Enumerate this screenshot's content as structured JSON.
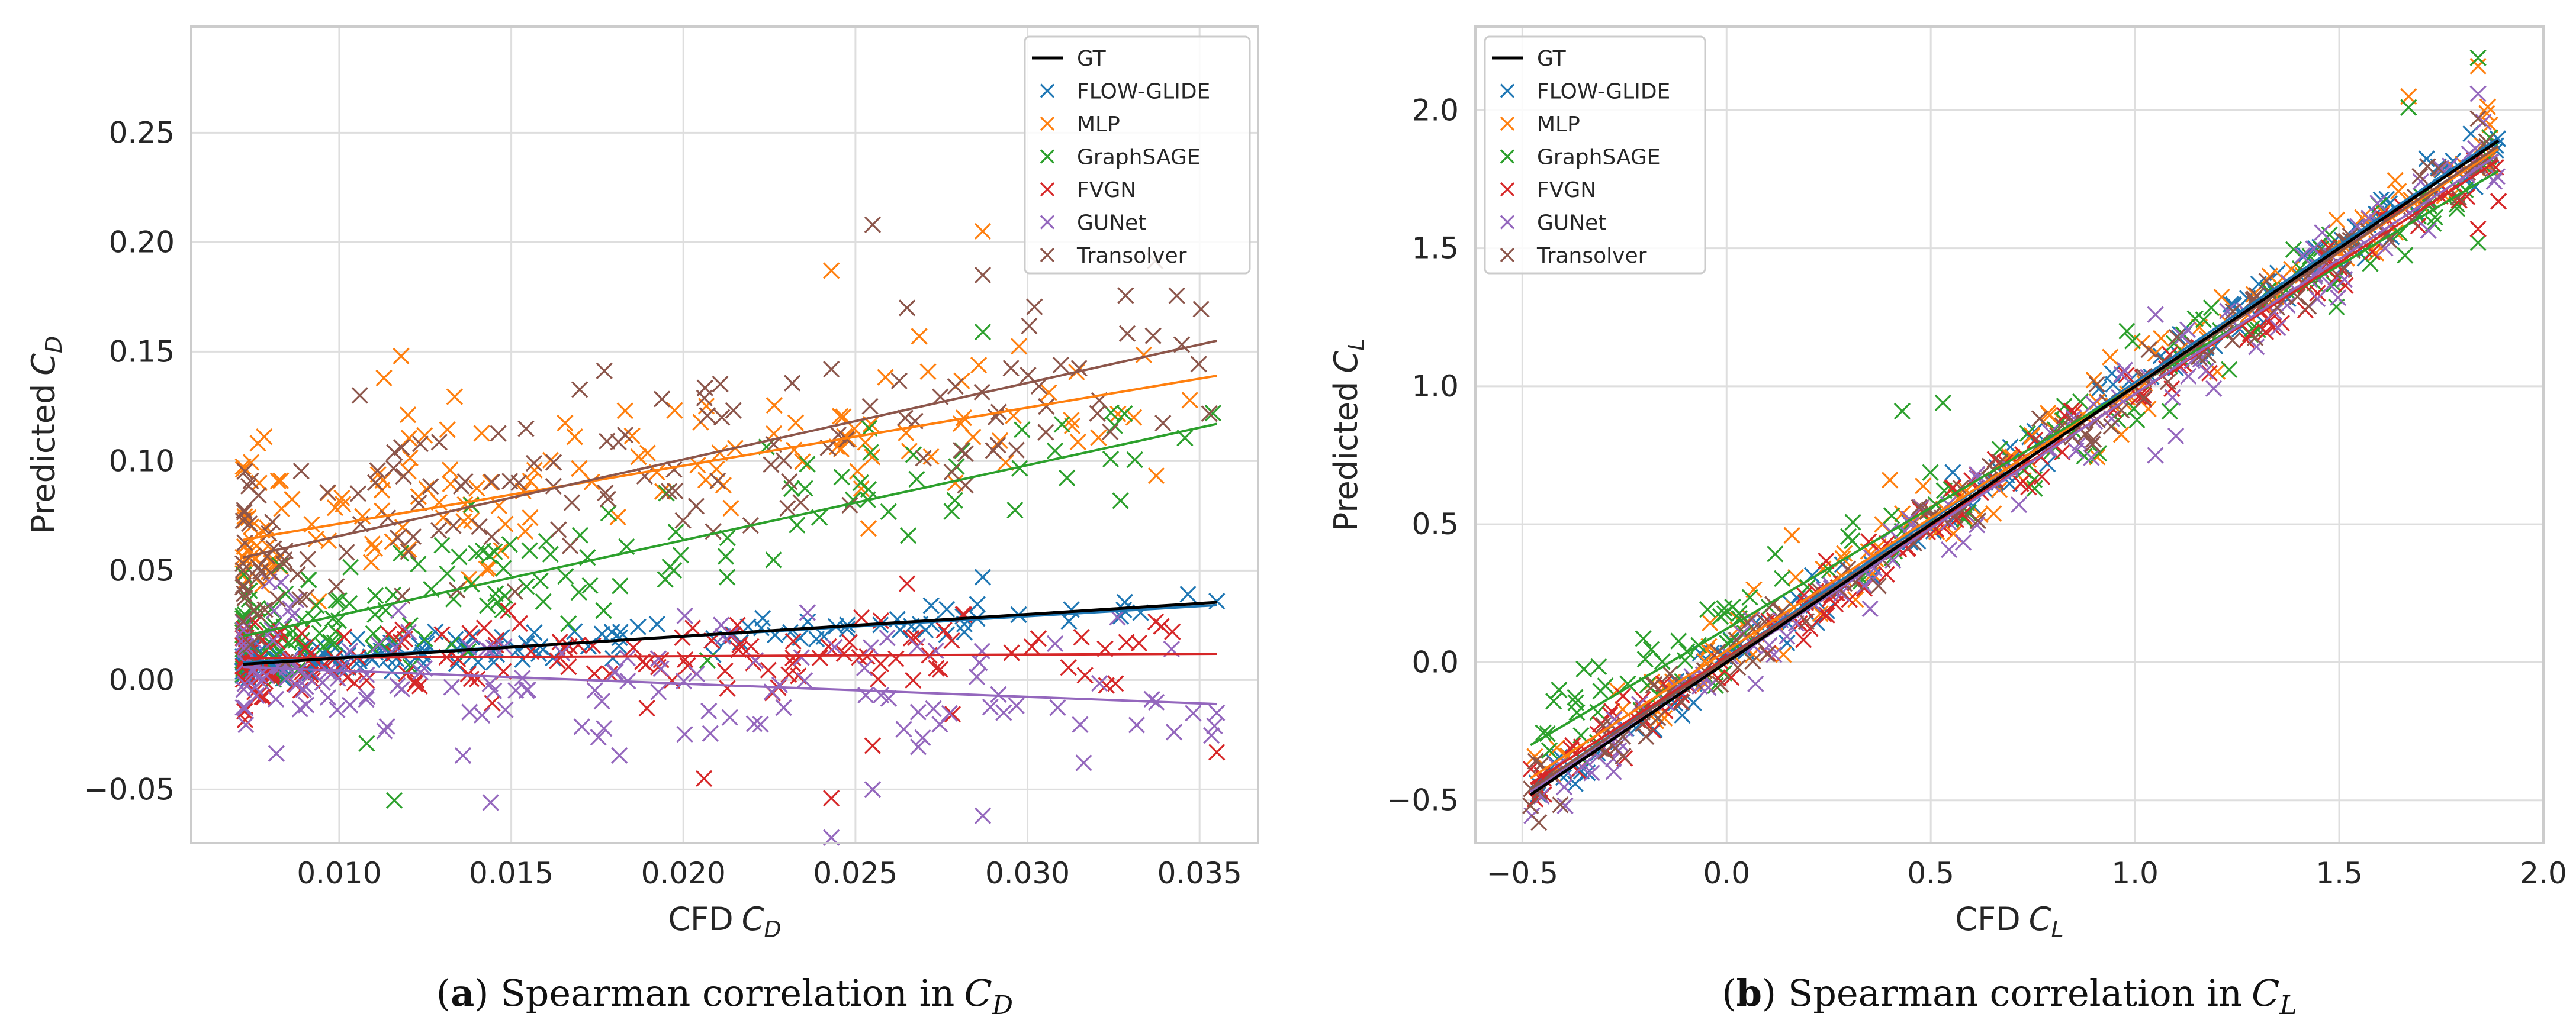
{
  "chart_data": [
    {
      "type": "scatter",
      "panel_label": "a",
      "caption": "Spearman correlation in",
      "caption_symbol": "C",
      "caption_sub": "D",
      "xlabel": "CFD",
      "xlabel_symbol": "C",
      "xlabel_sub": "D",
      "ylabel": "Predicted",
      "ylabel_symbol": "C",
      "ylabel_sub": "D",
      "xlim": [
        0.0057,
        0.0367
      ],
      "ylim": [
        -0.0745,
        0.2985
      ],
      "xticks": [
        0.01,
        0.015,
        0.02,
        0.025,
        0.03,
        0.035
      ],
      "xtick_labels": [
        "0.010",
        "0.015",
        "0.020",
        "0.025",
        "0.030",
        "0.035"
      ],
      "yticks": [
        -0.05,
        0.0,
        0.05,
        0.1,
        0.15,
        0.2,
        0.25
      ],
      "ytick_labels": [
        "−0.05",
        "0.00",
        "0.05",
        "0.10",
        "0.15",
        "0.20",
        "0.25"
      ],
      "grid": true,
      "legend_position": "top-right",
      "fit_x": [
        0.0072,
        0.0355
      ],
      "series": [
        {
          "name": "GT",
          "kind": "line",
          "color": "#000000",
          "fit": [
            0.0072,
            0.0355
          ]
        },
        {
          "name": "FLOW-GLIDE",
          "kind": "scatter",
          "color": "#1f77b4",
          "fit": [
            0.008,
            0.0342
          ],
          "noise": 0.004,
          "ext": [
            [
              0.0287,
              0.047
            ],
            [
              0.0355,
              0.036
            ],
            [
              0.0272,
              0.034
            ]
          ]
        },
        {
          "name": "MLP",
          "kind": "scatter",
          "color": "#ff7f0e",
          "fit": [
            0.064,
            0.139
          ],
          "noise": 0.018,
          "ext": [
            [
              0.0243,
              0.187
            ],
            [
              0.0287,
              0.205
            ],
            [
              0.0118,
              0.148
            ],
            [
              0.0113,
              0.138
            ],
            [
              0.0248,
              0.11
            ],
            [
              0.0279,
              0.09
            ]
          ]
        },
        {
          "name": "GraphSAGE",
          "kind": "scatter",
          "color": "#2ca02c",
          "fit": [
            0.02,
            0.117
          ],
          "noise": 0.014,
          "ext": [
            [
              0.0287,
              0.159
            ],
            [
              0.0254,
              0.115
            ],
            [
              0.0278,
              0.077
            ],
            [
              0.0116,
              -0.055
            ],
            [
              0.0108,
              -0.029
            ],
            [
              0.0207,
              0.009
            ]
          ]
        },
        {
          "name": "FVGN",
          "kind": "scatter",
          "color": "#d62728",
          "fit": [
            0.01,
            0.012
          ],
          "noise": 0.01,
          "ext": [
            [
              0.0355,
              -0.033
            ],
            [
              0.0243,
              -0.054
            ],
            [
              0.0206,
              -0.045
            ],
            [
              0.0255,
              -0.03
            ],
            [
              0.0278,
              0.018
            ],
            [
              0.0265,
              0.044
            ]
          ]
        },
        {
          "name": "GUNet",
          "kind": "scatter",
          "color": "#9467bd",
          "fit": [
            0.006,
            -0.011
          ],
          "noise": 0.016,
          "ext": [
            [
              0.0206,
              -0.075
            ],
            [
              0.0243,
              -0.072
            ],
            [
              0.0287,
              -0.062
            ],
            [
              0.0255,
              -0.05
            ],
            [
              0.0355,
              -0.015
            ],
            [
              0.0144,
              -0.056
            ]
          ]
        },
        {
          "name": "Transolver",
          "kind": "scatter",
          "color": "#8c564b",
          "fit": [
            0.056,
            0.155
          ],
          "noise": 0.02,
          "ext": [
            [
              0.0255,
              0.208
            ],
            [
              0.0287,
              0.185
            ],
            [
              0.0265,
              0.17
            ],
            [
              0.0243,
              0.142
            ],
            [
              0.0278,
              0.095
            ],
            [
              0.0106,
              0.13
            ]
          ]
        }
      ]
    },
    {
      "type": "scatter",
      "panel_label": "b",
      "caption": "Spearman correlation in",
      "caption_symbol": "C",
      "caption_sub": "L",
      "xlabel": "CFD",
      "xlabel_symbol": "C",
      "xlabel_sub": "L",
      "ylabel": "Predicted",
      "ylabel_symbol": "C",
      "ylabel_sub": "L",
      "xlim": [
        -0.615,
        2.0
      ],
      "ylim": [
        -0.655,
        2.303
      ],
      "xticks": [
        -0.5,
        0.0,
        0.5,
        1.0,
        1.5,
        2.0
      ],
      "xtick_labels": [
        "−0.5",
        "0.0",
        "0.5",
        "1.0",
        "1.5",
        "2.0"
      ],
      "yticks": [
        -0.5,
        0.0,
        0.5,
        1.0,
        1.5,
        2.0
      ],
      "ytick_labels": [
        "−0.5",
        "0.0",
        "0.5",
        "1.0",
        "1.5",
        "2.0"
      ],
      "grid": true,
      "legend_position": "top-left",
      "fit_x": [
        -0.48,
        1.89
      ],
      "series": [
        {
          "name": "GT",
          "kind": "line",
          "color": "#000000",
          "fit": [
            -0.48,
            1.89
          ]
        },
        {
          "name": "FLOW-GLIDE",
          "kind": "scatter",
          "color": "#1f77b4",
          "fit": [
            -0.46,
            1.9
          ],
          "noise": 0.05,
          "ext": []
        },
        {
          "name": "MLP",
          "kind": "scatter",
          "color": "#ff7f0e",
          "fit": [
            -0.42,
            1.86
          ],
          "noise": 0.07,
          "ext": [
            [
              1.67,
              2.05
            ],
            [
              1.84,
              2.16
            ],
            [
              0.16,
              0.46
            ],
            [
              0.4,
              0.66
            ]
          ]
        },
        {
          "name": "GraphSAGE",
          "kind": "scatter",
          "color": "#2ca02c",
          "fit": [
            -0.3,
            1.78
          ],
          "noise": 0.08,
          "ext": [
            [
              1.84,
              2.19
            ],
            [
              1.67,
              2.01
            ],
            [
              0.53,
              0.94
            ],
            [
              0.43,
              0.91
            ],
            [
              -0.41,
              -0.1
            ],
            [
              0.98,
              1.2
            ],
            [
              1.84,
              1.52
            ]
          ]
        },
        {
          "name": "FVGN",
          "kind": "scatter",
          "color": "#d62728",
          "fit": [
            -0.44,
            1.82
          ],
          "noise": 0.05,
          "ext": [
            [
              1.84,
              1.57
            ],
            [
              1.89,
              1.67
            ]
          ]
        },
        {
          "name": "GUNet",
          "kind": "scatter",
          "color": "#9467bd",
          "fit": [
            -0.47,
            1.84
          ],
          "noise": 0.07,
          "ext": [
            [
              1.84,
              2.06
            ],
            [
              1.05,
              1.26
            ],
            [
              1.1,
              0.82
            ],
            [
              1.05,
              0.75
            ]
          ]
        },
        {
          "name": "Transolver",
          "kind": "scatter",
          "color": "#8c564b",
          "fit": [
            -0.46,
            1.87
          ],
          "noise": 0.06,
          "ext": [
            [
              -0.48,
              -0.52
            ],
            [
              1.84,
              1.97
            ]
          ]
        }
      ]
    }
  ]
}
